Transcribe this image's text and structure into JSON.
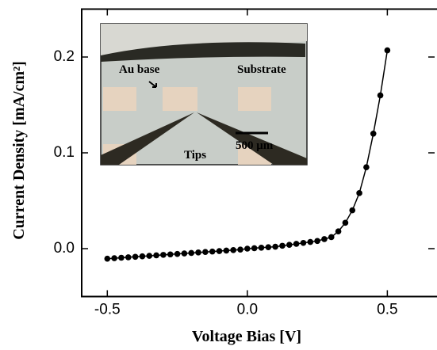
{
  "chart_data": {
    "type": "line",
    "xlabel": "Voltage Bias [V]",
    "ylabel": "Current Density [mA/cm²]",
    "x": [
      -0.5,
      -0.475,
      -0.45,
      -0.425,
      -0.4,
      -0.375,
      -0.35,
      -0.325,
      -0.3,
      -0.275,
      -0.25,
      -0.225,
      -0.2,
      -0.175,
      -0.15,
      -0.125,
      -0.1,
      -0.075,
      -0.05,
      -0.025,
      0,
      0.025,
      0.05,
      0.075,
      0.1,
      0.125,
      0.15,
      0.175,
      0.2,
      0.225,
      0.25,
      0.275,
      0.3,
      0.325,
      0.35,
      0.375,
      0.4,
      0.425,
      0.45,
      0.475,
      0.5
    ],
    "series": [
      {
        "color": "#000000",
        "values": [
          -0.0105,
          -0.01,
          -0.0095,
          -0.009,
          -0.0085,
          -0.008,
          -0.0075,
          -0.007,
          -0.0065,
          -0.006,
          -0.0055,
          -0.005,
          -0.0045,
          -0.004,
          -0.0035,
          -0.003,
          -0.0025,
          -0.002,
          -0.0015,
          -0.001,
          0,
          0.0005,
          0.001,
          0.0015,
          0.002,
          0.003,
          0.004,
          0.005,
          0.006,
          0.007,
          0.008,
          0.01,
          0.012,
          0.018,
          0.027,
          0.04,
          0.058,
          0.085,
          0.12,
          0.16,
          0.207
        ]
      }
    ],
    "xlim": [
      -0.6,
      0.7
    ],
    "ylim": [
      -0.05,
      0.25
    ],
    "xticks": [
      -0.5,
      {
        "value": 0,
        "label": "0.0"
      },
      0.5
    ],
    "yticks": [
      {
        "value": 0,
        "label": "0.0"
      },
      0.1,
      0.2
    ],
    "inset": {
      "labels": [
        "Au base",
        "Substrate",
        "500 μm",
        "Tips"
      ]
    }
  }
}
